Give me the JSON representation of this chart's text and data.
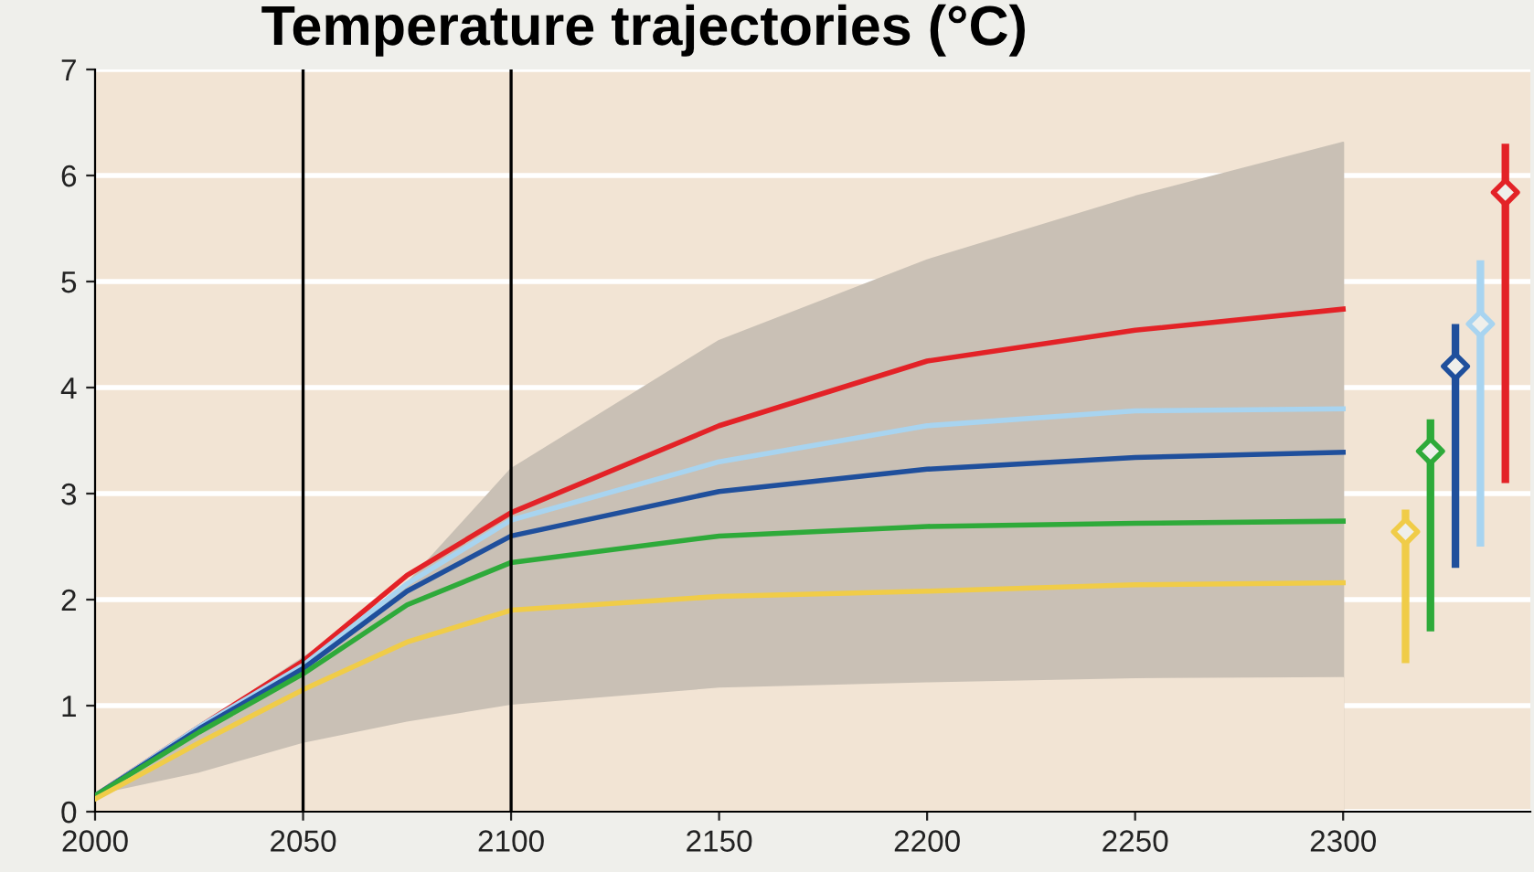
{
  "chart_data": {
    "type": "line",
    "title": "Temperature trajectories (°C)",
    "x": [
      2000,
      2025,
      2050,
      2075,
      2100,
      2150,
      2200,
      2250,
      2300
    ],
    "series": [
      {
        "type": "area",
        "color": "#c9c0b5",
        "values": [
          0.15,
          0.8,
          1.45,
          2.15,
          3.23,
          4.44,
          5.2,
          5.8,
          6.31
        ]
      },
      {
        "type": "area",
        "color": "#f2e4d4",
        "values": [
          0.15,
          0.36,
          0.64,
          0.84,
          1.0,
          1.16,
          1.21,
          1.25,
          1.26
        ]
      },
      {
        "color": "#e32227",
        "values": [
          0.15,
          0.8,
          1.42,
          2.23,
          2.82,
          3.64,
          4.25,
          4.54,
          4.74
        ]
      },
      {
        "color": "#a8d4f0",
        "values": [
          0.15,
          0.8,
          1.38,
          2.15,
          2.75,
          3.3,
          3.64,
          3.78,
          3.8
        ]
      },
      {
        "color": "#1f4f9c",
        "values": [
          0.15,
          0.78,
          1.35,
          2.08,
          2.6,
          3.02,
          3.23,
          3.34,
          3.39
        ]
      },
      {
        "color": "#2eaa3a",
        "values": [
          0.15,
          0.75,
          1.3,
          1.95,
          2.35,
          2.6,
          2.69,
          2.72,
          2.74
        ]
      },
      {
        "color": "#f0cc48",
        "values": [
          0.12,
          0.65,
          1.15,
          1.6,
          1.9,
          2.03,
          2.08,
          2.14,
          2.16
        ]
      },
      {
        "type": "scatter",
        "x": [
          2315,
          2321,
          2327,
          2333,
          2339
        ],
        "values": [
          2.64,
          3.4,
          4.2,
          4.6,
          5.84
        ],
        "errors": [
          [
            1.4,
            2.85
          ],
          [
            1.7,
            3.7
          ],
          [
            2.3,
            4.6
          ],
          [
            2.5,
            5.2
          ],
          [
            3.1,
            6.3
          ]
        ],
        "colors": [
          "#f0cc48",
          "#2eaa3a",
          "#1f4f9c",
          "#a8d4f0",
          "#e32227"
        ],
        "marker": "diamond"
      }
    ],
    "xlim": [
      2000,
      2345
    ],
    "xticks": [
      2000,
      2050,
      2100,
      2150,
      2200,
      2250,
      2300
    ],
    "ylim": [
      0,
      7
    ],
    "yticks": [
      0,
      1,
      2,
      3,
      4,
      5,
      6,
      7
    ],
    "grid": "y",
    "ref_lines": [
      {
        "axis": "x",
        "value": 2050,
        "color": "#000000"
      },
      {
        "axis": "x",
        "value": 2100,
        "color": "#000000"
      }
    ]
  }
}
